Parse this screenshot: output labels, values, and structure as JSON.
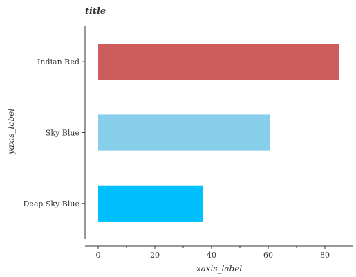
{
  "chart_data": {
    "type": "bar",
    "orientation": "horizontal",
    "title": "title",
    "xlabel": "xaxis_label",
    "ylabel": "yaxis_label",
    "categories": [
      "Deep Sky Blue",
      "Sky Blue",
      "Indian Red"
    ],
    "values": [
      37,
      60.5,
      85
    ],
    "colors": [
      "#00BFFF",
      "#87CEEB",
      "#CD5C5C"
    ],
    "xlim": [
      0,
      90
    ],
    "xticks": [
      0,
      20,
      40,
      60,
      80
    ],
    "grid": false,
    "legend": "none"
  }
}
